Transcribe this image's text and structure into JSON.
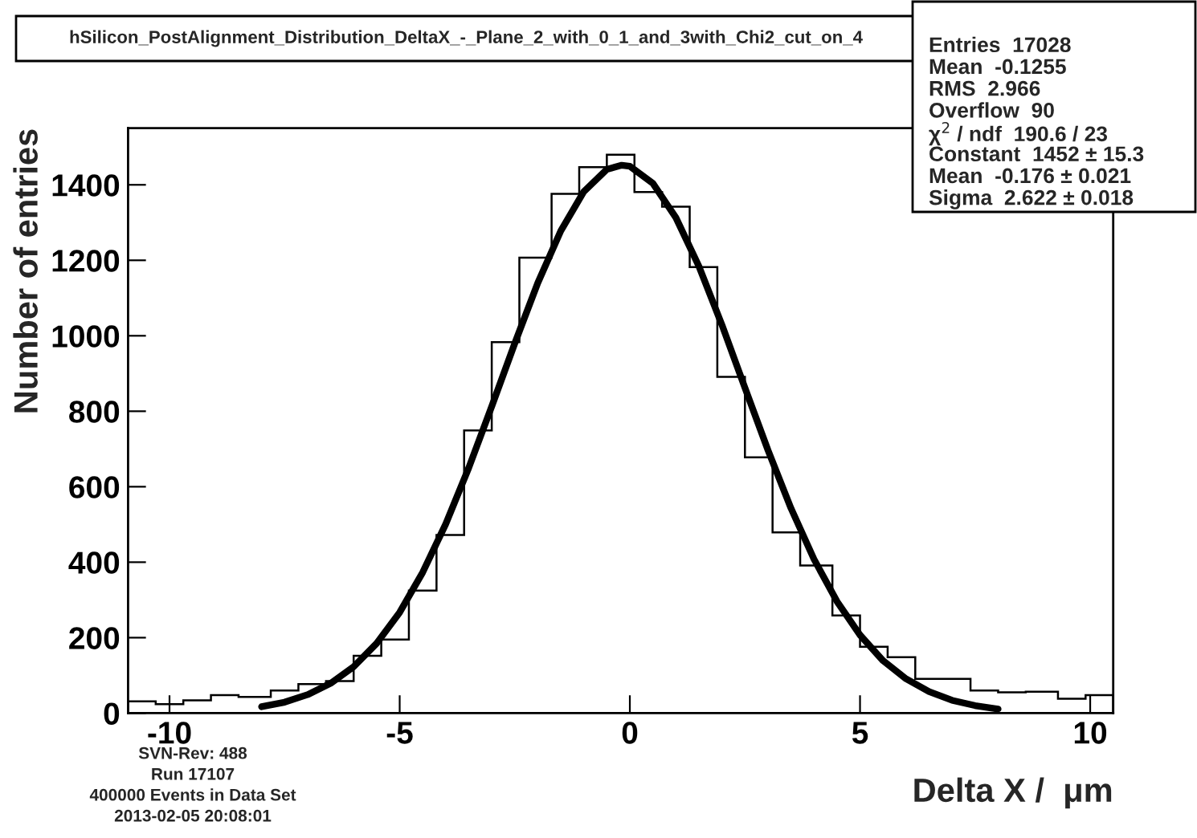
{
  "chart_data": {
    "type": "histogram",
    "title": "hSilicon_PostAlignment_Distribution_DeltaX_-_Plane_2_with_0_1_and_3with_Chi2_cut_on_4",
    "xlabel": "Delta X /  μm",
    "ylabel": "Number of entries",
    "bins": [
      -10.9,
      -10.3,
      -9.7,
      -9.1,
      -8.5,
      -7.8,
      -7.2,
      -6.6,
      -6.0,
      -5.4,
      -4.8,
      -4.2,
      -3.6,
      -3.0,
      -2.4,
      -1.7,
      -1.1,
      -0.5,
      0.1,
      0.7,
      1.3,
      1.9,
      2.5,
      3.1,
      3.7,
      4.4,
      5.0,
      5.6,
      6.2,
      6.8,
      7.4,
      8.0,
      8.6,
      9.3,
      9.9,
      10.5
    ],
    "values": [
      31,
      24,
      34,
      48,
      43,
      60,
      77,
      85,
      152,
      195,
      325,
      472,
      749,
      983,
      1207,
      1376,
      1447,
      1480,
      1381,
      1342,
      1182,
      891,
      678,
      479,
      391,
      259,
      176,
      148,
      91,
      91,
      60,
      55,
      57,
      38,
      48
    ],
    "color": "#000000",
    "series": [
      {
        "type": "line",
        "color": "#000000",
        "x": [
          -8,
          -7.5,
          -7,
          -6.5,
          -6,
          -5.5,
          -5,
          -4.5,
          -4,
          -3.5,
          -3,
          -2.5,
          -2,
          -1.5,
          -1,
          -0.5,
          -0.176,
          0,
          0.5,
          1,
          1.5,
          2,
          2.5,
          3,
          3.5,
          4,
          4.5,
          5,
          5.5,
          6,
          6.5,
          7,
          7.5,
          8
        ],
        "values": [
          17,
          29,
          49,
          79,
          123,
          185,
          267,
          373,
          501,
          650,
          813,
          980,
          1140,
          1278,
          1382,
          1441,
          1452,
          1449,
          1404,
          1313,
          1184,
          1029,
          862,
          697,
          543,
          408,
          296,
          207,
          139,
          91,
          57,
          34,
          20,
          11
        ]
      }
    ],
    "xlim": [
      -10.9,
      10.5
    ],
    "xticks": [
      {
        "value": -10,
        "label": "-10"
      },
      {
        "value": -5,
        "label": "-5"
      },
      0,
      5,
      10
    ],
    "ylim": [
      0,
      1550
    ],
    "yticks": [
      0,
      200,
      400,
      600,
      800,
      1000,
      1200,
      1400
    ],
    "grid": false,
    "annotations": [
      "Entries  17028",
      "Mean  -0.1255",
      "RMS  2.966",
      "Overflow  90",
      "χ$^{2}$ / ndf  190.6 / 23",
      "Constant  1452 ± 15.3",
      "Mean  -0.176 ± 0.021",
      "Sigma  2.622 ± 0.018",
      "SVN-Rev: 488",
      "Run 17107",
      "400000 Events in Data Set",
      "2013-02-05 20:08:01"
    ]
  }
}
